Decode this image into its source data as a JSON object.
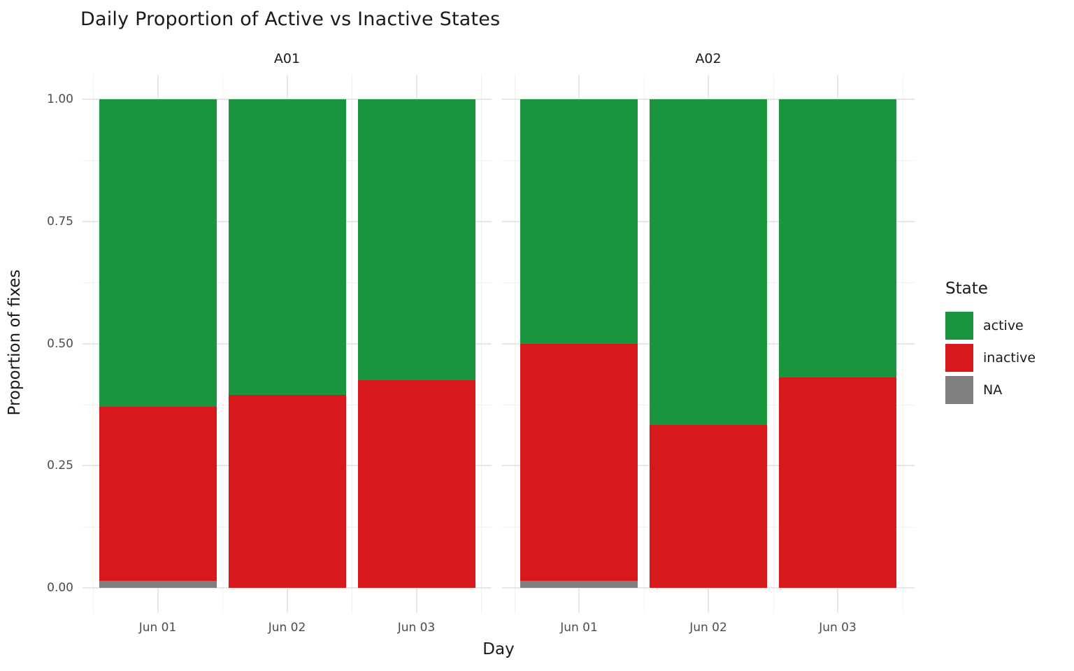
{
  "chart_data": {
    "type": "bar",
    "stacked": true,
    "title": "Daily Proportion of Active vs Inactive States",
    "xlabel": "Day",
    "ylabel": "Proportion of fixes",
    "ylim": [
      0,
      1
    ],
    "ytick_labels": [
      "1.00",
      "0.75",
      "0.50",
      "0.25",
      "0.00"
    ],
    "ytick_values": [
      1.0,
      0.75,
      0.5,
      0.25,
      0.0
    ],
    "grid": {
      "major": [
        0,
        0.25,
        0.5,
        0.75,
        1.0
      ],
      "minor": [
        0.125,
        0.375,
        0.625,
        0.875
      ],
      "on": true
    },
    "categories": [
      "Jun 01",
      "Jun 02",
      "Jun 03"
    ],
    "stack_order_bottom_to_top": [
      "NA",
      "inactive",
      "active"
    ],
    "facets": [
      {
        "label": "A01",
        "series": [
          {
            "name": "active",
            "values": [
              0.63,
              0.605,
              0.575
            ]
          },
          {
            "name": "inactive",
            "values": [
              0.355,
              0.395,
              0.425
            ]
          },
          {
            "name": "NA",
            "values": [
              0.015,
              0.0,
              0.0
            ]
          }
        ]
      },
      {
        "label": "A02",
        "series": [
          {
            "name": "active",
            "values": [
              0.5,
              0.667,
              0.57
            ]
          },
          {
            "name": "inactive",
            "values": [
              0.485,
              0.333,
              0.43
            ]
          },
          {
            "name": "NA",
            "values": [
              0.015,
              0.0,
              0.0
            ]
          }
        ]
      }
    ],
    "legend": {
      "title": "State",
      "position": "right",
      "entries": [
        {
          "label": "active",
          "color": "#1A9641"
        },
        {
          "label": "inactive",
          "color": "#D7191C"
        },
        {
          "label": "NA",
          "color": "#808080"
        }
      ]
    },
    "colors": {
      "background": "#FFFFFF",
      "grid_major": "#E7E7E7",
      "grid_minor": "#F1F1F1",
      "tick_text": "#4D4D4D",
      "text": "#1A1A1A"
    }
  }
}
